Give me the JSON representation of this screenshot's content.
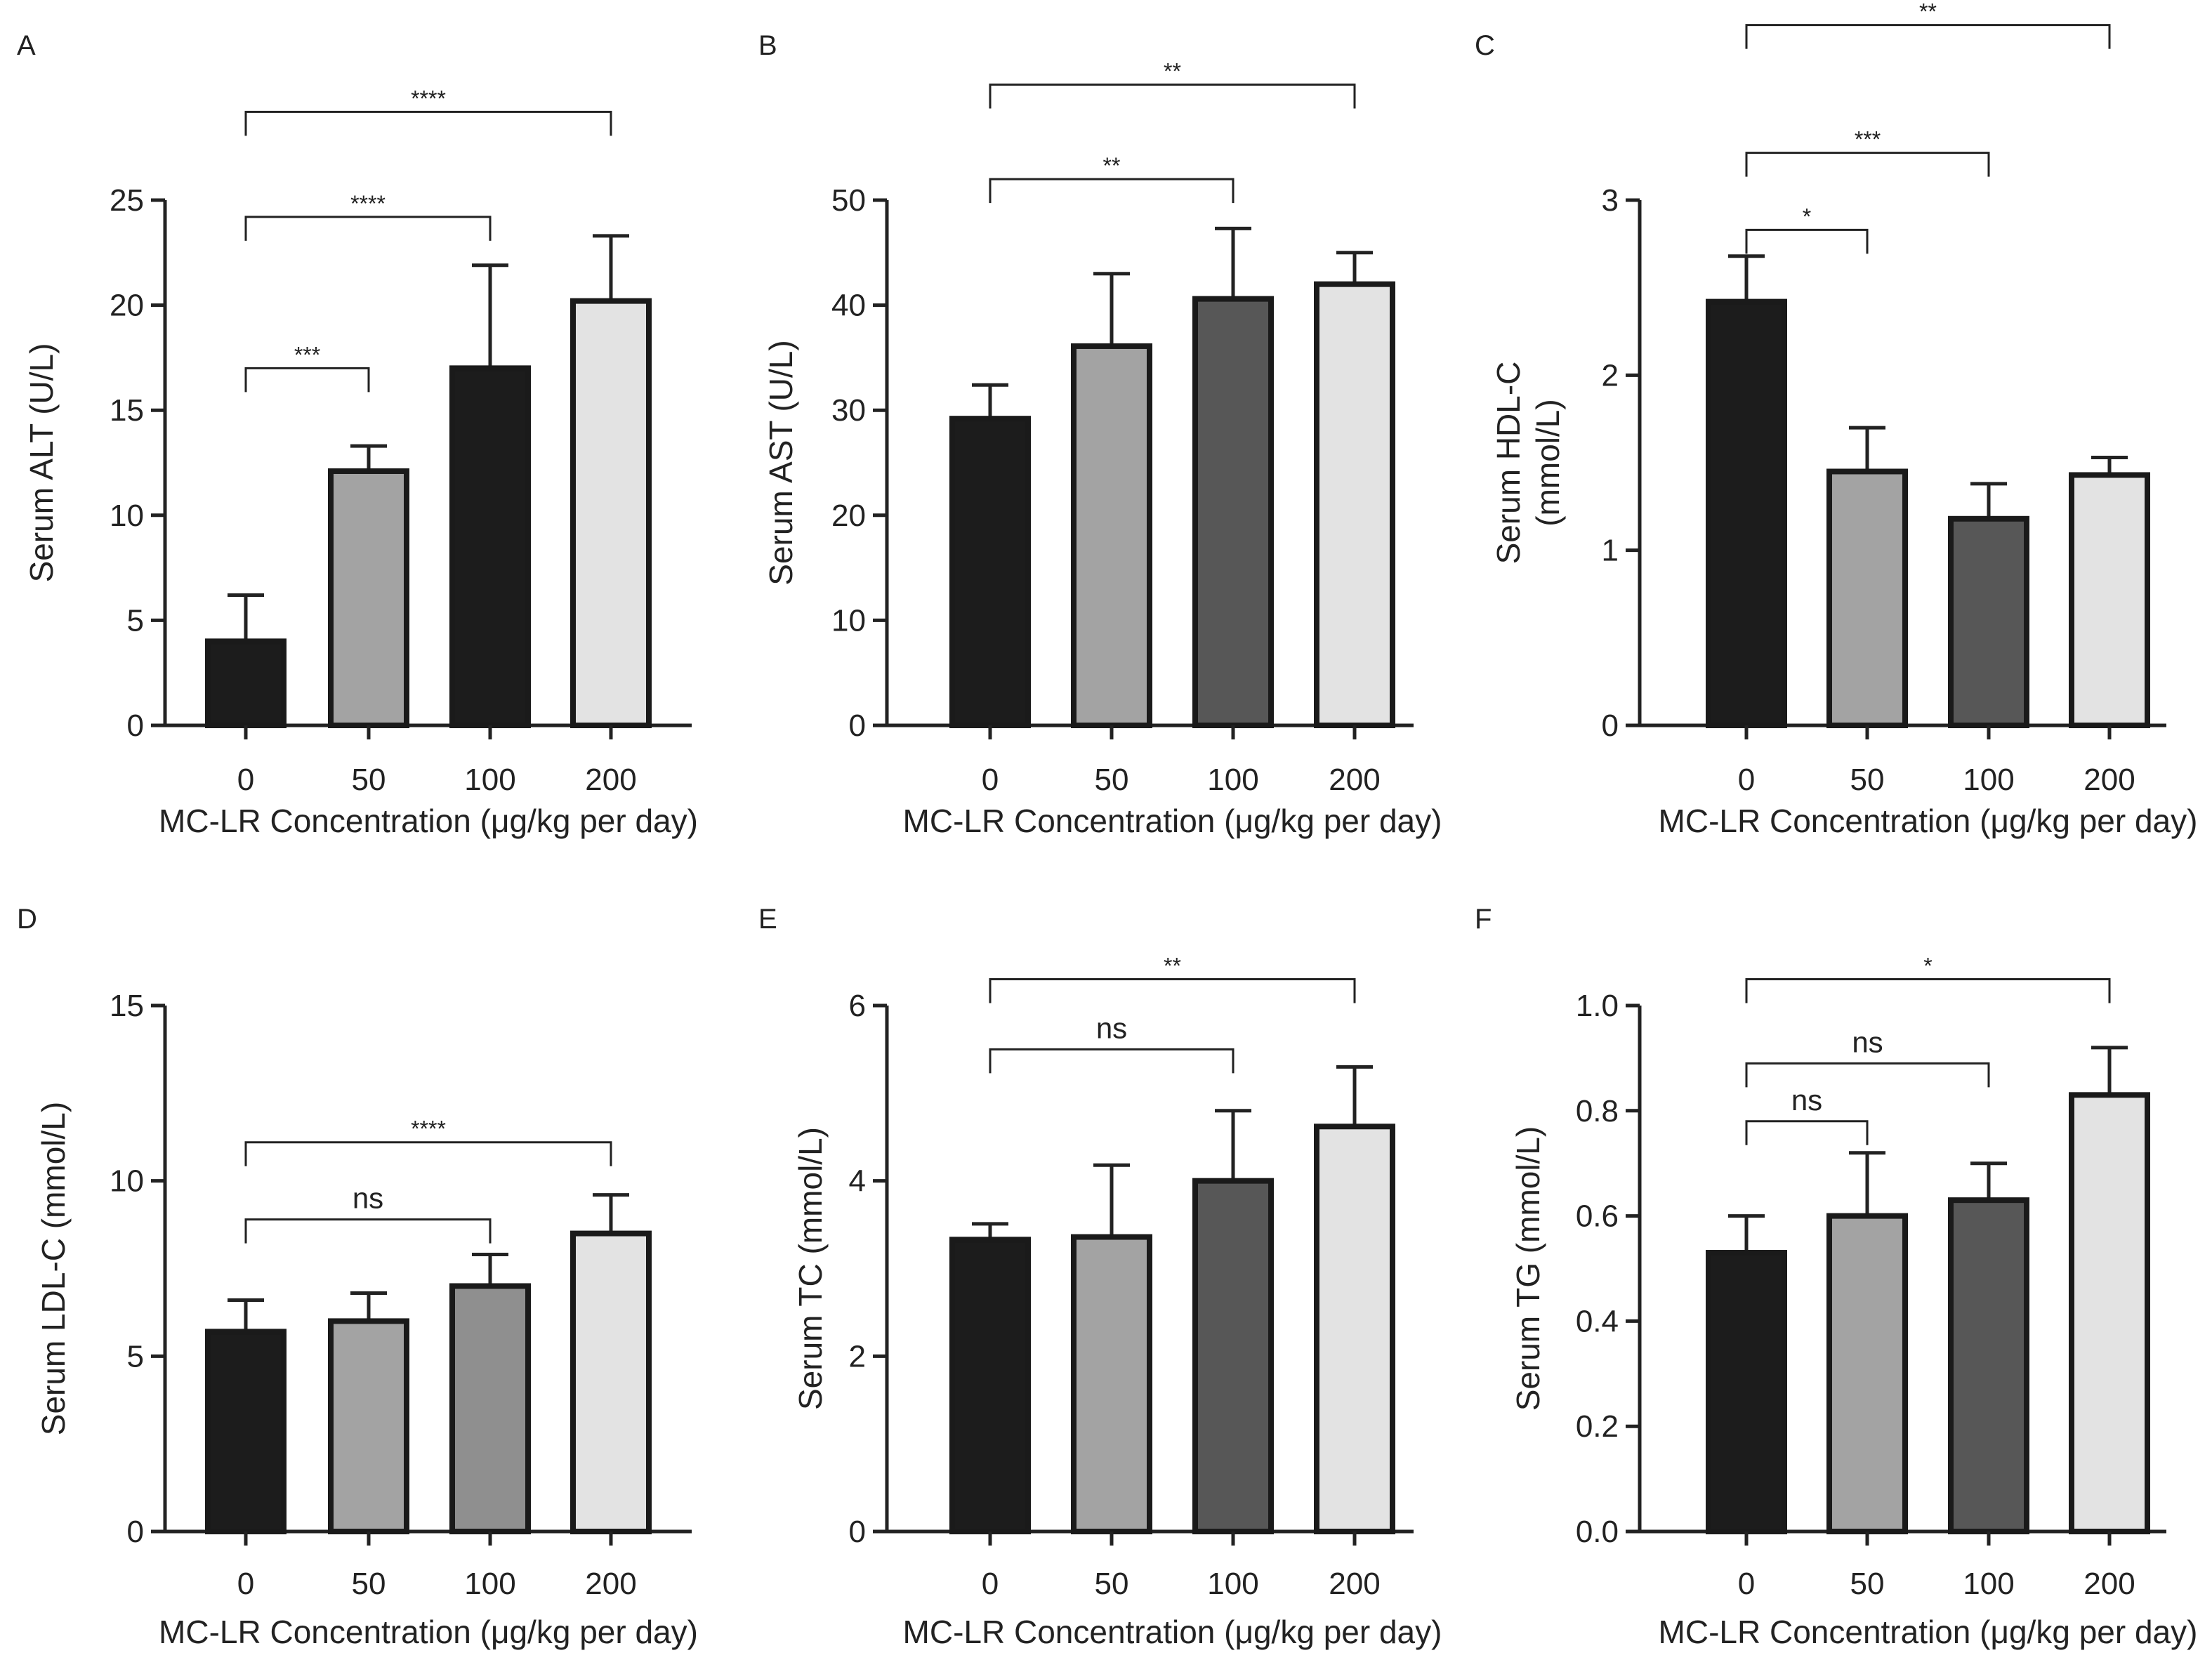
{
  "chart_data": [
    {
      "panel": "A",
      "type": "bar",
      "categories": [
        "0",
        "50",
        "100",
        "200"
      ],
      "values": [
        4.0,
        12.1,
        17.0,
        20.2
      ],
      "errors": [
        2.2,
        1.2,
        4.9,
        3.1
      ],
      "colors": [
        "#1c1c1c",
        "#a3a3a3",
        "#1c1c1c",
        "#e3e3e3"
      ],
      "ylabel": [
        "Serum ALT (U/L)"
      ],
      "xlabel": "MC-LR Concentration (μg/kg per day)",
      "ylim": [
        0,
        25
      ],
      "yticks": [
        0,
        5,
        10,
        15,
        20,
        25
      ],
      "yticks_labels": [
        "0",
        "5",
        "10",
        "15",
        "20",
        "25"
      ],
      "significance": [
        {
          "from": "0",
          "to": "50",
          "label": "***",
          "level": 17.0
        },
        {
          "from": "0",
          "to": "100",
          "label": "****",
          "level": 24.2
        },
        {
          "from": "0",
          "to": "200",
          "label": "****",
          "level": 29.2
        }
      ]
    },
    {
      "panel": "B",
      "type": "bar",
      "categories": [
        "0",
        "50",
        "100",
        "200"
      ],
      "values": [
        29.2,
        36.1,
        40.6,
        42.0
      ],
      "errors": [
        3.2,
        6.9,
        6.7,
        3.0
      ],
      "colors": [
        "#1c1c1c",
        "#a3a3a3",
        "#575757",
        "#e3e3e3"
      ],
      "ylabel": [
        "Serum AST (U/L)"
      ],
      "xlabel": "MC-LR Concentration (μg/kg per day)",
      "ylim": [
        0,
        50
      ],
      "yticks": [
        0,
        10,
        20,
        30,
        40,
        50
      ],
      "yticks_labels": [
        "0",
        "10",
        "20",
        "30",
        "40",
        "50"
      ],
      "significance": [
        {
          "from": "0",
          "to": "100",
          "label": "**",
          "level": 52.0
        },
        {
          "from": "0",
          "to": "200",
          "label": "**",
          "level": 61.0
        }
      ]
    },
    {
      "panel": "C",
      "type": "bar",
      "categories": [
        "0",
        "50",
        "100",
        "200"
      ],
      "values": [
        2.42,
        1.45,
        1.18,
        1.43
      ],
      "errors": [
        0.26,
        0.25,
        0.2,
        0.1
      ],
      "colors": [
        "#1c1c1c",
        "#a3a3a3",
        "#575757",
        "#e3e3e3"
      ],
      "ylabel": [
        "Serum HDL-C",
        "(mmol/L)"
      ],
      "xlabel": "MC-LR Concentration (μg/kg per day)",
      "ylim": [
        0,
        3
      ],
      "yticks": [
        0,
        1,
        2,
        3
      ],
      "yticks_labels": [
        "0",
        "1",
        "2",
        "3"
      ],
      "significance": [
        {
          "from": "0",
          "to": "50",
          "label": "*",
          "level": 2.83
        },
        {
          "from": "0",
          "to": "100",
          "label": "***",
          "level": 3.27
        },
        {
          "from": "0",
          "to": "200",
          "label": "**",
          "level": 4.0
        }
      ]
    },
    {
      "panel": "D",
      "type": "bar",
      "categories": [
        "0",
        "50",
        "100",
        "200"
      ],
      "values": [
        5.7,
        6.0,
        7.0,
        8.5
      ],
      "errors": [
        0.9,
        0.8,
        0.9,
        1.1
      ],
      "colors": [
        "#1c1c1c",
        "#a3a3a3",
        "#8f8f8f",
        "#e3e3e3"
      ],
      "ylabel": [
        "Serum LDL-C (mmol/L)"
      ],
      "xlabel": "MC-LR Concentration (μg/kg per day)",
      "ylim": [
        0,
        15
      ],
      "yticks": [
        0,
        5,
        10,
        15
      ],
      "yticks_labels": [
        "0",
        "5",
        "10",
        "15"
      ],
      "significance": [
        {
          "from": "0",
          "to": "100",
          "label": "ns",
          "level": 8.9
        },
        {
          "from": "0",
          "to": "200",
          "label": "****",
          "level": 11.1
        }
      ]
    },
    {
      "panel": "E",
      "type": "bar",
      "categories": [
        "0",
        "50",
        "100",
        "200"
      ],
      "values": [
        3.33,
        3.36,
        4.0,
        4.62
      ],
      "errors": [
        0.18,
        0.82,
        0.8,
        0.68
      ],
      "colors": [
        "#1c1c1c",
        "#a3a3a3",
        "#575757",
        "#e3e3e3"
      ],
      "ylabel": [
        "Serum TC (mmol/L)"
      ],
      "xlabel": "MC-LR Concentration (μg/kg per day)",
      "ylim": [
        0,
        6
      ],
      "yticks": [
        0,
        2,
        4,
        6
      ],
      "yticks_labels": [
        "0",
        "2",
        "4",
        "6"
      ],
      "significance": [
        {
          "from": "0",
          "to": "100",
          "label": "ns",
          "level": 5.5
        },
        {
          "from": "0",
          "to": "200",
          "label": "**",
          "level": 6.3
        }
      ]
    },
    {
      "panel": "F",
      "type": "bar",
      "categories": [
        "0",
        "50",
        "100",
        "200"
      ],
      "values": [
        0.53,
        0.6,
        0.63,
        0.83
      ],
      "errors": [
        0.07,
        0.12,
        0.07,
        0.09
      ],
      "colors": [
        "#1c1c1c",
        "#a3a3a3",
        "#575757",
        "#e3e3e3"
      ],
      "ylabel": [
        "Serum TG (mmol/L)"
      ],
      "xlabel": "MC-LR Concentration (μg/kg per day)",
      "ylim": [
        0,
        1.0
      ],
      "yticks": [
        0,
        0.2,
        0.4,
        0.6,
        0.8,
        1.0
      ],
      "yticks_labels": [
        "0.0",
        "0.2",
        "0.4",
        "0.6",
        "0.8",
        "1.0"
      ],
      "significance": [
        {
          "from": "0",
          "to": "50",
          "label": "ns",
          "level": 0.78
        },
        {
          "from": "0",
          "to": "100",
          "label": "ns",
          "level": 0.89
        },
        {
          "from": "0",
          "to": "200",
          "label": "*",
          "level": 1.05
        }
      ]
    }
  ]
}
